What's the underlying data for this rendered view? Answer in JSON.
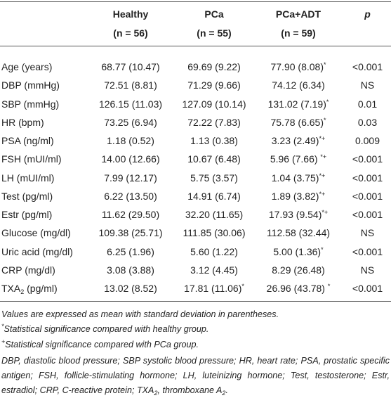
{
  "table": {
    "columns": [
      {
        "name": "Healthy",
        "n": "(n = 56)"
      },
      {
        "name": "PCa",
        "n": "(n = 55)"
      },
      {
        "name": "PCa+ADT",
        "n": "(n = 59)"
      },
      {
        "name": "p"
      }
    ],
    "rows": [
      {
        "label": "Age (years)",
        "cells": [
          "68.77 (10.47)",
          "69.69 (9.22)",
          {
            "text": "77.90 (8.08)",
            "sup": "*"
          },
          "<0.001"
        ]
      },
      {
        "label": "DBP (mmHg)",
        "cells": [
          "72.51 (8.81)",
          "71.29 (9.66)",
          "74.12 (6.34)",
          "NS"
        ]
      },
      {
        "label": "SBP (mmHg)",
        "cells": [
          "126.15 (11.03)",
          "127.09 (10.14)",
          {
            "text": "131.02 (7.19)",
            "sup": "*"
          },
          "0.01"
        ]
      },
      {
        "label": "HR (bpm)",
        "cells": [
          "73.25 (6.94)",
          "72.22 (7.83)",
          {
            "text": "75.78 (6.65)",
            "sup": "*"
          },
          "0.03"
        ]
      },
      {
        "label": "PSA (ng/ml)",
        "cells": [
          "1.18 (0.52)",
          "1.13 (0.38)",
          {
            "text": "3.23 (2.49)",
            "sup": "*+"
          },
          "0.009"
        ]
      },
      {
        "label": "FSH (mUI/ml)",
        "cells": [
          "14.00 (12.66)",
          "10.67 (6.48)",
          {
            "text": "5.96 (7.66) ",
            "sup": "*+"
          },
          "<0.001"
        ]
      },
      {
        "label": "LH (mUI/ml)",
        "cells": [
          "7.99 (12.17)",
          "5.75 (3.57)",
          {
            "text": "1.04 (3.75)",
            "sup": "*+"
          },
          "<0.001"
        ]
      },
      {
        "label": "Test (pg/ml)",
        "cells": [
          "6.22 (13.50)",
          "14.91 (6.74)",
          {
            "text": "1.89 (3.82)",
            "sup": "*+"
          },
          "<0.001"
        ]
      },
      {
        "label": "Estr (pg/ml)",
        "cells": [
          "11.62 (29.50)",
          "32.20 (11.65)",
          {
            "text": "17.93 (9.54)",
            "sup": "*+"
          },
          "<0.001"
        ]
      },
      {
        "label": "Glucose (mg/dl)",
        "cells": [
          "109.38 (25.71)",
          "111.85 (30.06)",
          "112.58 (32.44)",
          "NS"
        ]
      },
      {
        "label": "Uric acid (mg/dl)",
        "cells": [
          "6.25 (1.96)",
          "5.60 (1.22)",
          {
            "text": "5.00 (1.36)",
            "sup": "*"
          },
          "<0.001"
        ]
      },
      {
        "label": "CRP (mg/dl)",
        "cells": [
          "3.08 (3.88)",
          "3.12 (4.45)",
          "8.29 (26.48)",
          "NS"
        ]
      },
      {
        "label": "TXA",
        "label_sub": "2",
        "label_rest": " (pg/ml)",
        "cells": [
          "13.02 (8.52)",
          {
            "text": "17.81 (11.06)",
            "sup": "*"
          },
          {
            "text": "26.96 (43.78) ",
            "sup": "*"
          },
          "<0.001"
        ]
      }
    ],
    "footnotes": [
      [
        {
          "text": "Values are expressed as mean with standard deviation in parentheses."
        }
      ],
      [
        {
          "sup": "*"
        },
        {
          "text": "Statistical significance compared with healthy group."
        }
      ],
      [
        {
          "sup": "+"
        },
        {
          "text": "Statistical significance compared with PCa group."
        }
      ],
      [
        {
          "text": "DBP, diastolic blood pressure; SBP systolic blood pressure; HR, heart rate; PSA, prostatic specific antigen; FSH, follicle-stimulating hormone; LH, luteinizing hormone; Test, testosterone; Estr, estradiol; CRP, C-reactive protein; TXA"
        },
        {
          "sub": "2"
        },
        {
          "text": ", thromboxane A"
        },
        {
          "sub": "2"
        },
        {
          "text": "."
        }
      ]
    ]
  }
}
